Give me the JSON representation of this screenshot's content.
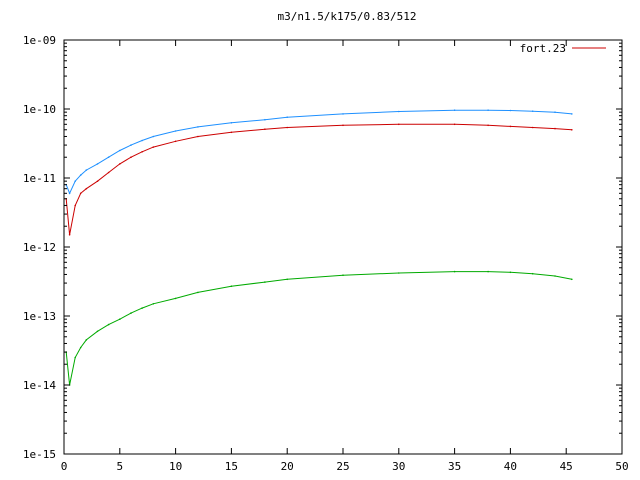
{
  "chart_data": {
    "type": "line",
    "title": "m3/n1.5/k175/0.83/512",
    "xlabel": "",
    "ylabel": "",
    "xlim": [
      0,
      50
    ],
    "ylim": [
      1e-15,
      1e-09
    ],
    "yscale": "log",
    "grid": false,
    "legend_position": "top-right",
    "x_ticks": [
      "0",
      "5",
      "10",
      "15",
      "20",
      "25",
      "30",
      "35",
      "40",
      "45",
      "50"
    ],
    "y_ticks": [
      "1e-15",
      "1e-14",
      "1e-13",
      "1e-12",
      "1e-11",
      "1e-10",
      "1e-09"
    ],
    "series": [
      {
        "name": "fort.23",
        "color": "#cc0000",
        "x": [
          0.2,
          0.5,
          1,
          1.5,
          2,
          3,
          4,
          5,
          6,
          7,
          8,
          10,
          12,
          15,
          18,
          20,
          25,
          30,
          35,
          38,
          40,
          42,
          44,
          45.5
        ],
        "y": [
          5e-12,
          1.5e-12,
          4e-12,
          6e-12,
          7e-12,
          9e-12,
          1.2e-11,
          1.6e-11,
          2e-11,
          2.4e-11,
          2.8e-11,
          3.4e-11,
          4e-11,
          4.6e-11,
          5.1e-11,
          5.4e-11,
          5.8e-11,
          6e-11,
          6e-11,
          5.8e-11,
          5.6e-11,
          5.4e-11,
          5.2e-11,
          5e-11
        ]
      },
      {
        "name": "",
        "color": "#1e90ff",
        "x": [
          0.2,
          0.5,
          1,
          1.5,
          2,
          3,
          4,
          5,
          6,
          7,
          8,
          10,
          12,
          15,
          18,
          20,
          25,
          30,
          35,
          38,
          40,
          42,
          44,
          45.5
        ],
        "y": [
          8e-12,
          6e-12,
          9e-12,
          1.1e-11,
          1.3e-11,
          1.6e-11,
          2e-11,
          2.5e-11,
          3e-11,
          3.5e-11,
          4e-11,
          4.8e-11,
          5.5e-11,
          6.3e-11,
          7e-11,
          7.6e-11,
          8.5e-11,
          9.2e-11,
          9.6e-11,
          9.6e-11,
          9.5e-11,
          9.3e-11,
          9e-11,
          8.5e-11
        ]
      },
      {
        "name": "",
        "color": "#00aa00",
        "x": [
          0.2,
          0.5,
          1,
          1.5,
          2,
          3,
          4,
          5,
          6,
          7,
          8,
          10,
          12,
          15,
          18,
          20,
          25,
          30,
          35,
          38,
          40,
          42,
          44,
          45.5
        ],
        "y": [
          3e-14,
          1e-14,
          2.5e-14,
          3.5e-14,
          4.5e-14,
          6e-14,
          7.5e-14,
          9e-14,
          1.1e-13,
          1.3e-13,
          1.5e-13,
          1.8e-13,
          2.2e-13,
          2.7e-13,
          3.1e-13,
          3.4e-13,
          3.9e-13,
          4.2e-13,
          4.4e-13,
          4.4e-13,
          4.3e-13,
          4.1e-13,
          3.8e-13,
          3.4e-13
        ]
      }
    ]
  }
}
